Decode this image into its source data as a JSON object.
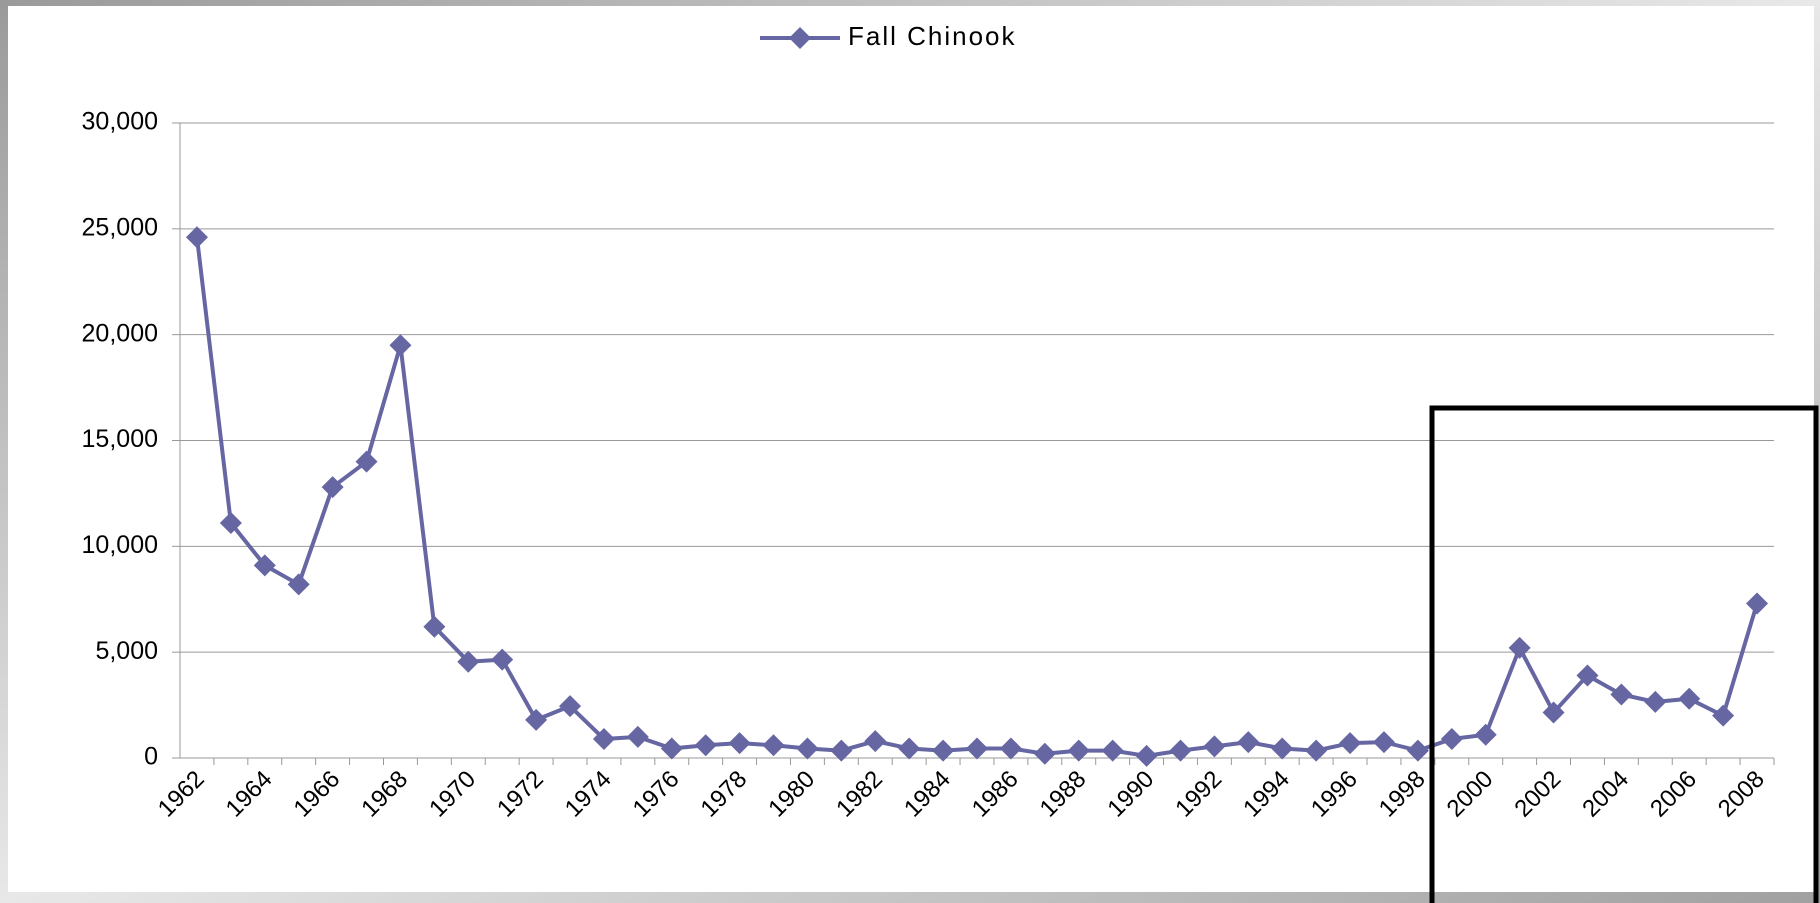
{
  "chart_data": {
    "type": "line",
    "categories": [
      "1962",
      null,
      "1964",
      null,
      "1966",
      null,
      "1968",
      null,
      "1970",
      null,
      "1972",
      null,
      "1974",
      null,
      "1976",
      null,
      "1978",
      null,
      "1980",
      null,
      "1982",
      null,
      "1984",
      null,
      "1986",
      null,
      "1988",
      null,
      "1990",
      null,
      "1992",
      null,
      "1994",
      null,
      "1996",
      null,
      "1998",
      null,
      "2000",
      null,
      "2002",
      null,
      "2004",
      null,
      "2006",
      null,
      "2008"
    ],
    "series": [
      {
        "name": "Fall Chinook",
        "color": "#6666a3",
        "values": [
          24600,
          11100,
          9100,
          8200,
          12800,
          14000,
          19500,
          6200,
          4550,
          4650,
          1800,
          2450,
          900,
          1000,
          450,
          600,
          700,
          600,
          450,
          350,
          800,
          450,
          350,
          450,
          450,
          200,
          350,
          350,
          100,
          350,
          550,
          750,
          450,
          350,
          700,
          750,
          350,
          900,
          1100,
          5200,
          2150,
          3900,
          3000,
          2650,
          2800,
          2000,
          7300
        ]
      }
    ],
    "ylim": [
      0,
      30000
    ],
    "yticks": [
      0,
      {
        "value": 5000,
        "label": "5,000"
      },
      {
        "value": 10000,
        "label": "10,000"
      },
      {
        "value": 15000,
        "label": "15,000"
      },
      {
        "value": 20000,
        "label": "20,000"
      },
      {
        "value": 25000,
        "label": "25,000"
      },
      {
        "value": 30000,
        "label": "30,000"
      }
    ],
    "grid": true,
    "legend": "top"
  }
}
